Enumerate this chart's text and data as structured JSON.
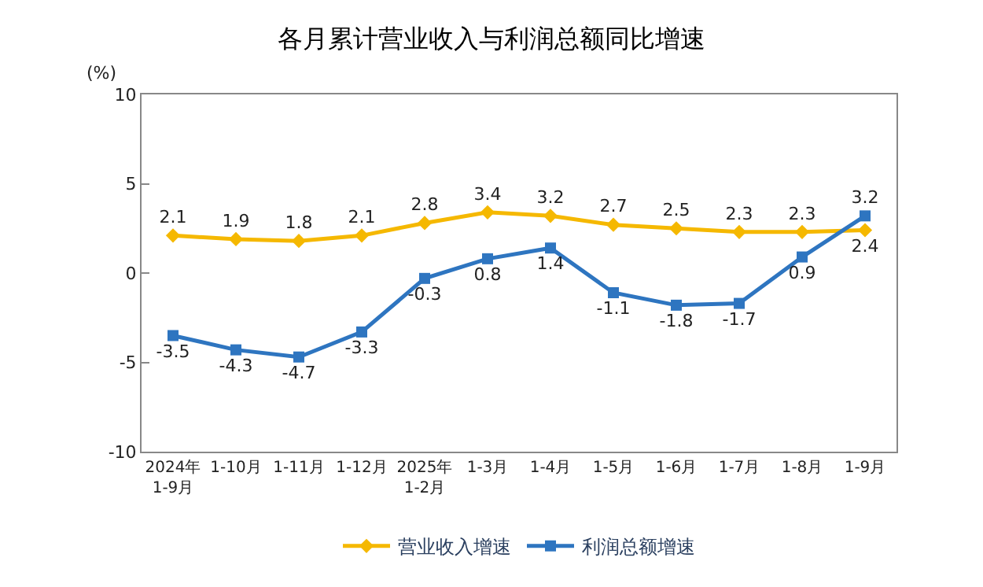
{
  "chart_data": {
    "type": "line",
    "title": "各月累计营业收入与利润总额同比增速",
    "ylabel": "(%)",
    "categories": [
      "2024年\n1-9月",
      "1-10月",
      "1-11月",
      "1-12月",
      "2025年\n1-2月",
      "1-3月",
      "1-4月",
      "1-5月",
      "1-6月",
      "1-7月",
      "1-8月",
      "1-9月"
    ],
    "series": [
      {
        "name": "营业收入增速",
        "color": "#f5b800",
        "marker": "diamond",
        "values": [
          2.1,
          1.9,
          1.8,
          2.1,
          2.8,
          3.4,
          3.2,
          2.7,
          2.5,
          2.3,
          2.3,
          2.4
        ]
      },
      {
        "name": "利润总额增速",
        "color": "#2e75c0",
        "marker": "square",
        "values": [
          -3.5,
          -4.3,
          -4.7,
          -3.3,
          -0.3,
          0.8,
          1.4,
          -1.1,
          -1.8,
          -1.7,
          0.9,
          3.2
        ]
      }
    ],
    "ylim": [
      -10,
      10
    ],
    "yticks": [
      -10,
      -5,
      0,
      5,
      10
    ],
    "data_labels": true,
    "legend": "bottom"
  }
}
